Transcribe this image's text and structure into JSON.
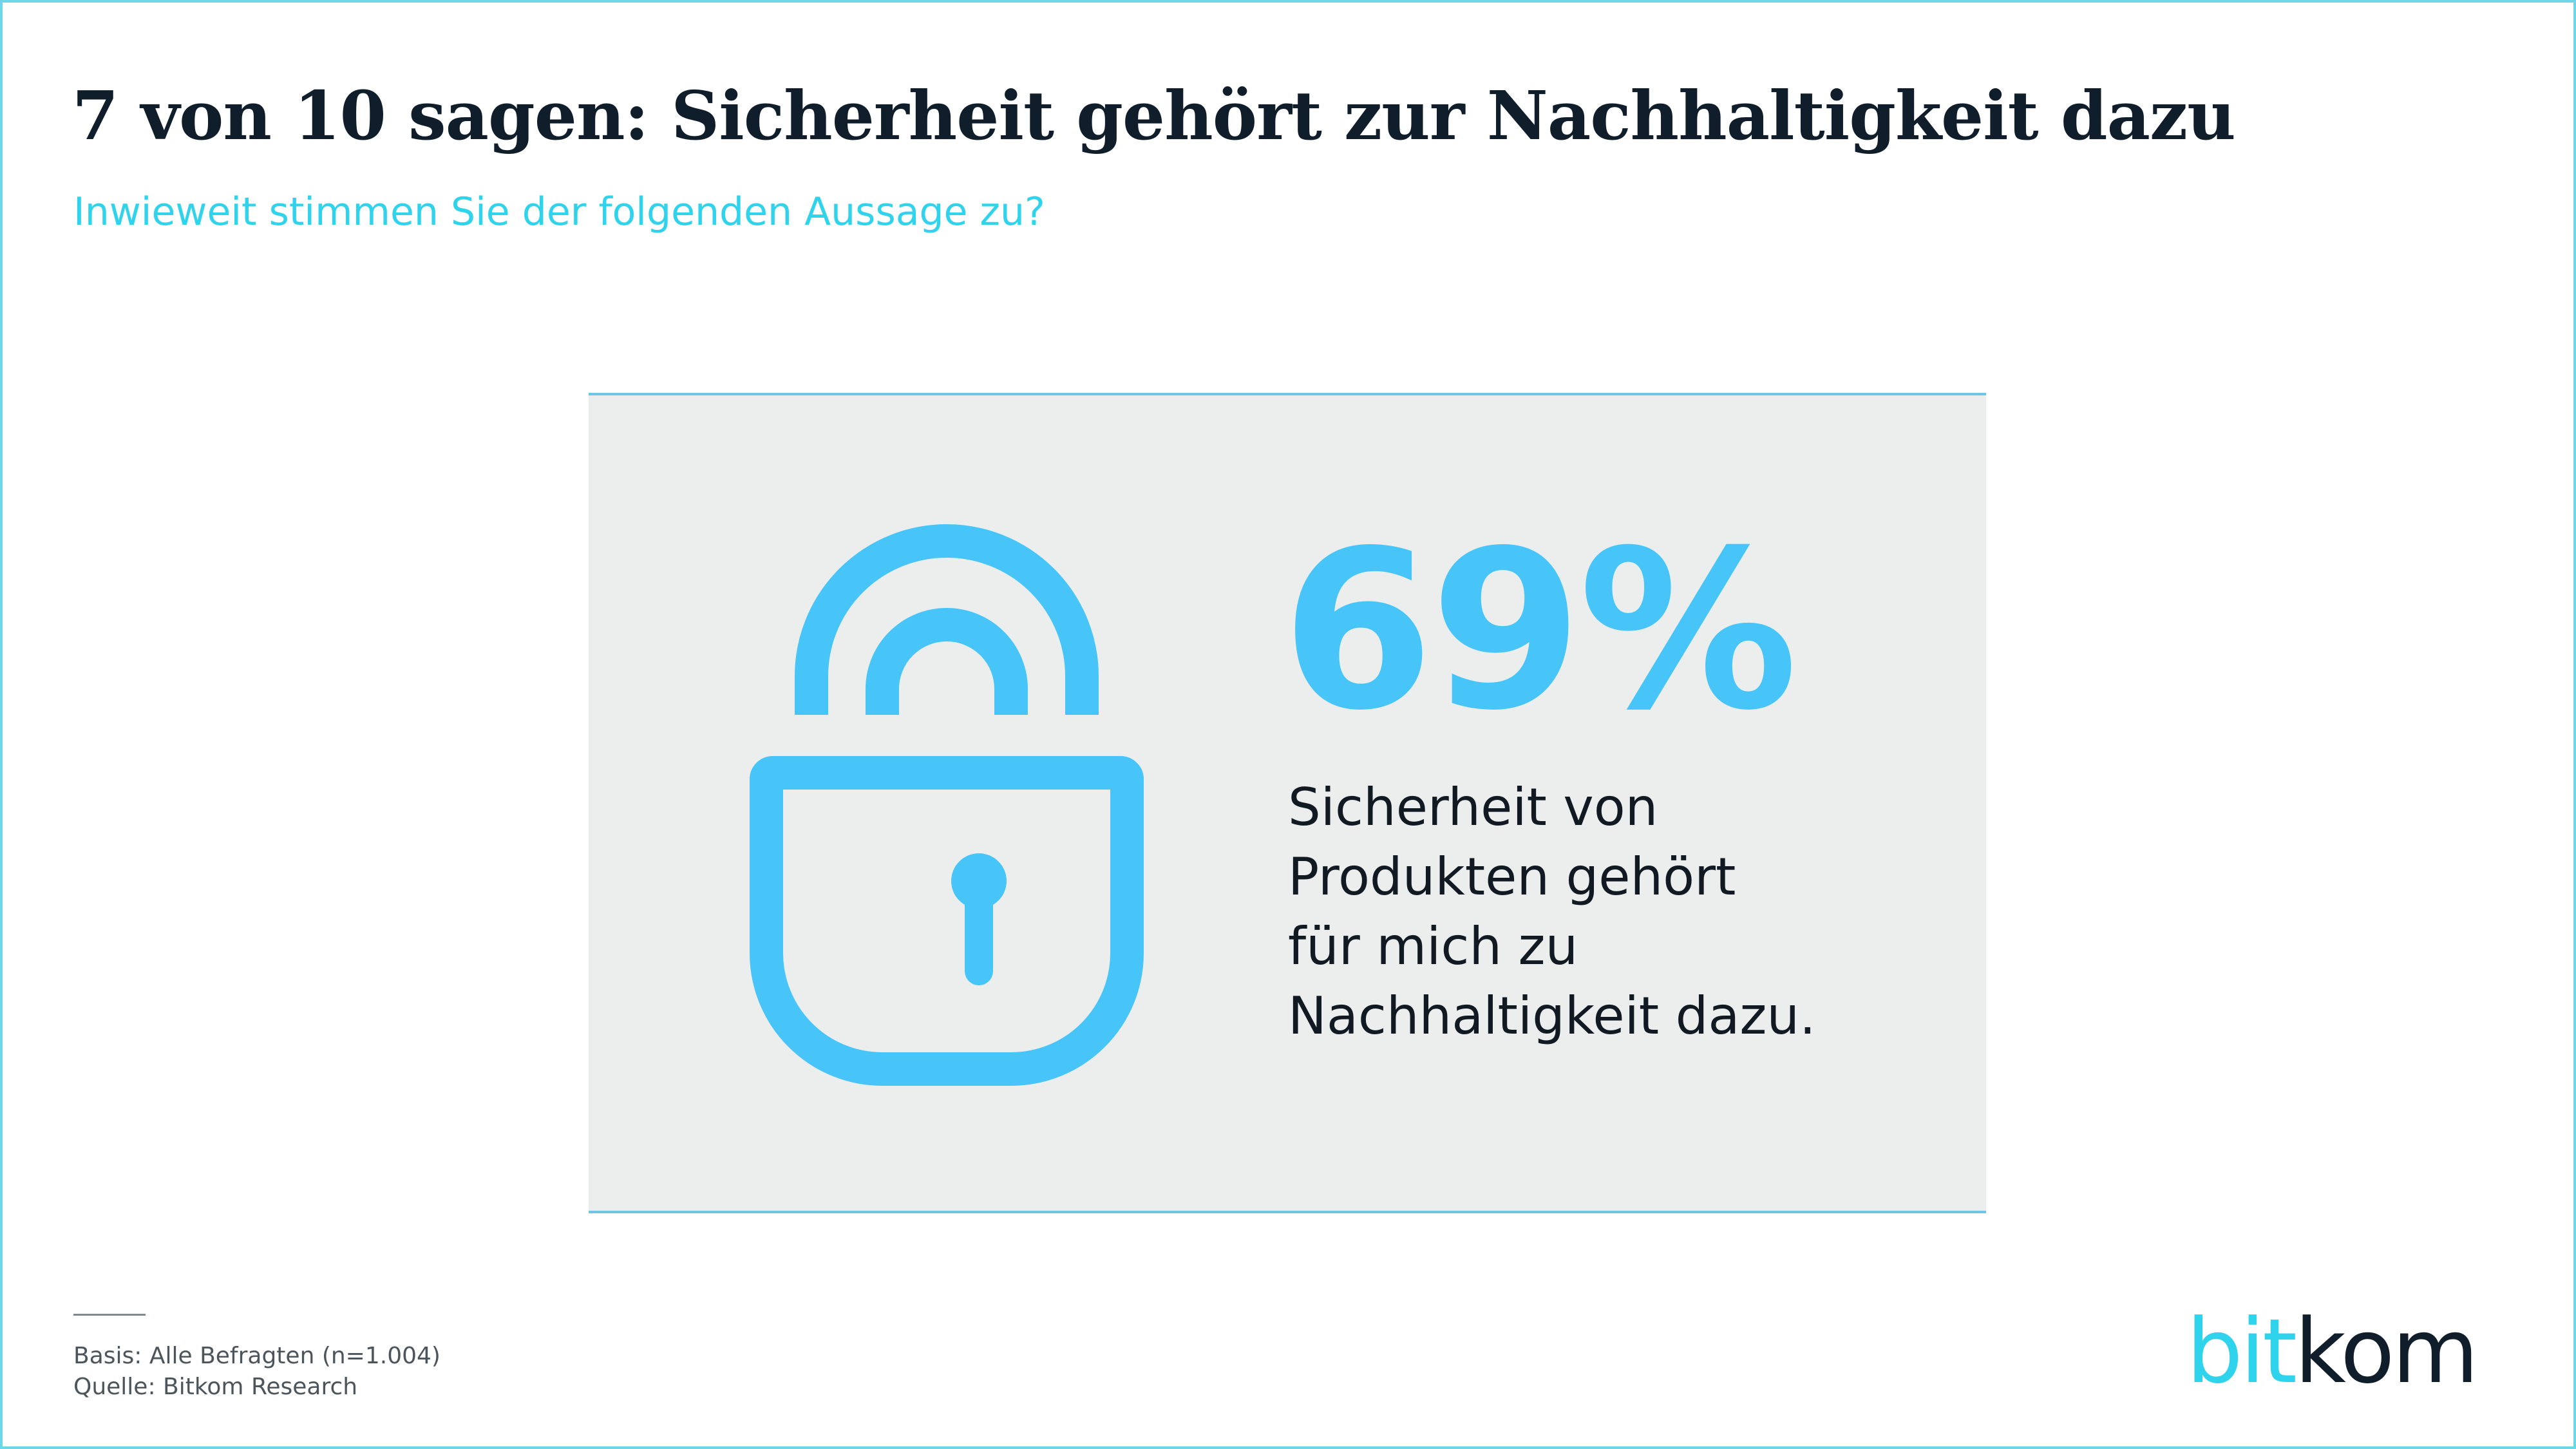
{
  "header": {
    "title": "7 von 10 sagen: Sicherheit gehört zur Nachhaltigkeit dazu",
    "subtitle": "Inwieweit stimmen Sie der folgenden Aussage zu?"
  },
  "card": {
    "icon": "lock-icon",
    "percent": "69%",
    "statement_lines": [
      "Sicherheit von",
      "Produkten gehört",
      "für mich zu",
      "Nachhaltigkeit dazu."
    ]
  },
  "footer": {
    "basis": "Basis: Alle Befragten (n=1.004)",
    "source": "Quelle: Bitkom Research"
  },
  "logo": {
    "part1": "bit",
    "part2": "kom"
  },
  "colors": {
    "accent": "#47c5f8",
    "subtitle": "#2fd3ec",
    "title": "#0f1e2a",
    "card_background": "#ebeeed"
  }
}
